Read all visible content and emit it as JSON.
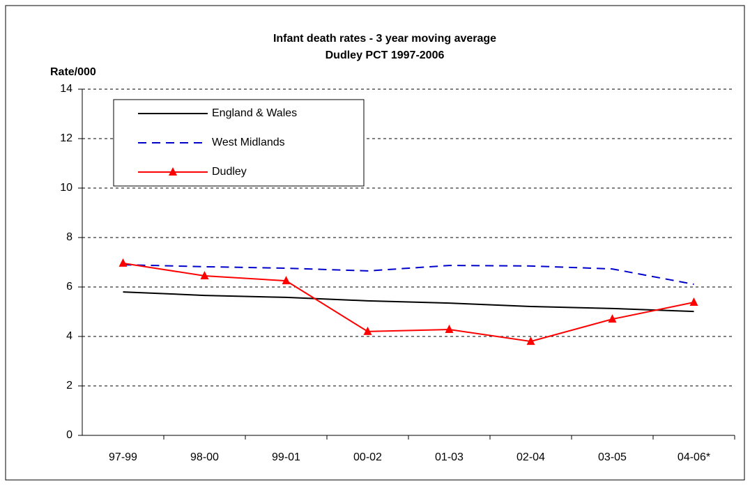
{
  "chart_data": {
    "type": "line",
    "title": "Infant death rates - 3 year moving average",
    "subtitle": "Dudley PCT 1997-2006",
    "y_label": "Rate/000",
    "categories": [
      "97-99",
      "98-00",
      "99-01",
      "00-02",
      "01-03",
      "02-04",
      "03-05",
      "04-06*"
    ],
    "series": [
      {
        "name": "England & Wales",
        "color": "#000000",
        "dash": "solid",
        "marker": "none",
        "values": [
          5.8,
          5.66,
          5.58,
          5.44,
          5.35,
          5.21,
          5.13,
          5.01
        ]
      },
      {
        "name": "West Midlands",
        "color": "#0000cc",
        "dash": "dashed",
        "marker": "none",
        "values": [
          6.9,
          6.82,
          6.76,
          6.65,
          6.87,
          6.85,
          6.73,
          6.11
        ]
      },
      {
        "name": "Dudley",
        "color": "#ff0000",
        "dash": "solid",
        "marker": "triangle",
        "values": [
          6.96,
          6.45,
          6.25,
          4.2,
          4.28,
          3.8,
          4.7,
          5.38
        ]
      }
    ],
    "ylim": [
      0,
      14
    ],
    "yticks": [
      0,
      2,
      4,
      6,
      8,
      10,
      12,
      14
    ],
    "grid": true,
    "legend": "upper left"
  }
}
